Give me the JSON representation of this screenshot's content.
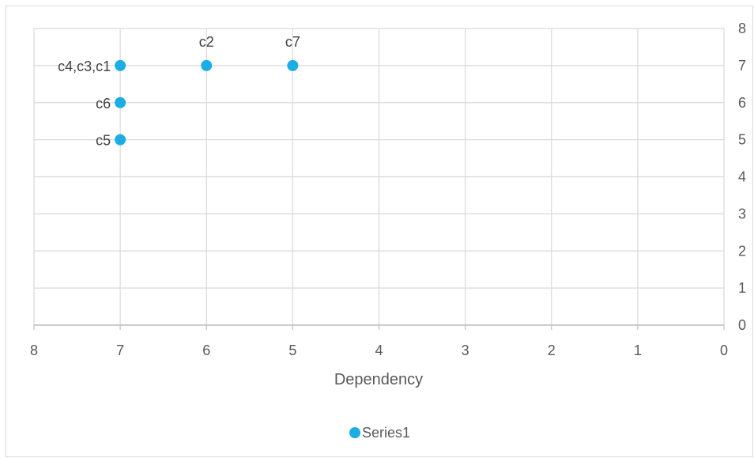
{
  "chart_data": {
    "type": "scatter",
    "title": "",
    "xlabel": "Dependency",
    "ylabel": "",
    "xlim": [
      8,
      0
    ],
    "ylim": [
      0,
      8
    ],
    "x_reversed": true,
    "y_axis_position": "right",
    "x_ticks": [
      "8",
      "7",
      "6",
      "5",
      "4",
      "3",
      "2",
      "1",
      "0"
    ],
    "y_ticks": [
      "0",
      "1",
      "2",
      "3",
      "4",
      "5",
      "6",
      "7",
      "8"
    ],
    "grid": true,
    "legend_position": "bottom",
    "series": [
      {
        "name": "Series1",
        "color": "#1CADE4",
        "points": [
          {
            "x": 7,
            "y": 7,
            "label": "c4,c3,c1",
            "label_side": "left"
          },
          {
            "x": 6,
            "y": 7,
            "label": "c2",
            "label_side": "above"
          },
          {
            "x": 5,
            "y": 7,
            "label": "c7",
            "label_side": "above"
          },
          {
            "x": 7,
            "y": 6,
            "label": "c6",
            "label_side": "left"
          },
          {
            "x": 7,
            "y": 5,
            "label": "c5",
            "label_side": "left"
          }
        ]
      }
    ]
  }
}
